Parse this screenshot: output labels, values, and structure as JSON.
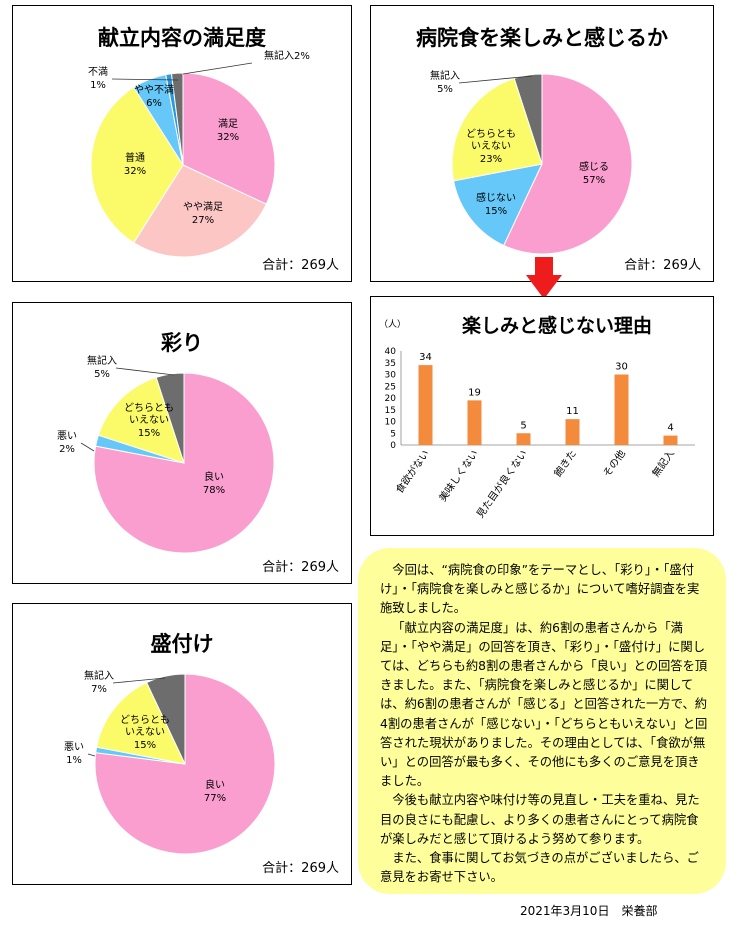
{
  "colors": {
    "pink": "#fa9ed0",
    "lightpink": "#fbc6c4",
    "yellow": "#fbfb6a",
    "blue": "#66c8f8",
    "darkblue": "#2a9ae0",
    "gray": "#6d6d6d",
    "orange": "#f48a3c",
    "red": "#ee1c1c"
  },
  "chart_data": [
    {
      "type": "pie",
      "title": "献立内容の満足度",
      "total_label": "合計：269人",
      "slices": [
        {
          "label": "満足",
          "pct_label": "32%",
          "value": 32,
          "color": "pink"
        },
        {
          "label": "やや満足",
          "pct_label": "27%",
          "value": 27,
          "color": "lightpink"
        },
        {
          "label": "普通",
          "pct_label": "32%",
          "value": 32,
          "color": "yellow"
        },
        {
          "label": "やや不満",
          "pct_label": "6%",
          "value": 6,
          "color": "blue"
        },
        {
          "label": "不満",
          "pct_label": "1%",
          "value": 1,
          "color": "darkblue"
        },
        {
          "label": "無記入",
          "pct_label": "2%",
          "value": 2,
          "color": "gray"
        }
      ]
    },
    {
      "type": "pie",
      "title": "病院食を楽しみと感じるか",
      "total_label": "合計：269人",
      "slices": [
        {
          "label": "感じる",
          "pct_label": "57%",
          "value": 57,
          "color": "pink"
        },
        {
          "label": "感じない",
          "pct_label": "15%",
          "value": 15,
          "color": "blue"
        },
        {
          "label": "どちらとも\nいえない",
          "pct_label": "23%",
          "value": 23,
          "color": "yellow"
        },
        {
          "label": "無記入",
          "pct_label": "5%",
          "value": 5,
          "color": "gray"
        }
      ]
    },
    {
      "type": "pie",
      "title": "彩り",
      "total_label": "合計：269人",
      "slices": [
        {
          "label": "良い",
          "pct_label": "78%",
          "value": 78,
          "color": "pink"
        },
        {
          "label": "悪い",
          "pct_label": "2%",
          "value": 2,
          "color": "blue"
        },
        {
          "label": "どちらとも\nいえない",
          "pct_label": "15%",
          "value": 15,
          "color": "yellow"
        },
        {
          "label": "無記入",
          "pct_label": "5%",
          "value": 5,
          "color": "gray"
        }
      ]
    },
    {
      "type": "pie",
      "title": "盛付け",
      "total_label": "合計：269人",
      "slices": [
        {
          "label": "良い",
          "pct_label": "77%",
          "value": 77,
          "color": "pink"
        },
        {
          "label": "悪い",
          "pct_label": "1%",
          "value": 1,
          "color": "blue"
        },
        {
          "label": "どちらとも\nいえない",
          "pct_label": "15%",
          "value": 15,
          "color": "yellow"
        },
        {
          "label": "無記入",
          "pct_label": "7%",
          "value": 7,
          "color": "gray"
        }
      ]
    },
    {
      "type": "bar",
      "title": "楽しみと感じない理由",
      "ylabel": "（人）",
      "ylim": [
        0,
        40
      ],
      "yticks": [
        0,
        5,
        10,
        15,
        20,
        25,
        30,
        35,
        40
      ],
      "categories": [
        "食欲がない",
        "美味しくない",
        "見た目が良くない",
        "飽きた",
        "その他",
        "無記入"
      ],
      "values": [
        34,
        19,
        5,
        11,
        30,
        4
      ]
    }
  ],
  "note": {
    "paragraphs": [
      "今回は、“病院食の印象”をテーマとし、「彩り」・「盛付け」・「病院食を楽しみと感じるか」について嗜好調査を実施致しました。",
      "「献立内容の満足度」は、約6割の患者さんから「満足」・「やや満足」の回答を頂き、「彩り」・「盛付け」に関しては、どちらも約8割の患者さんから「良い」との回答を頂きました。また、「病院食を楽しみと感じるか」に関しては、約6割の患者さんが「感じる」と回答された一方で、約4割の患者さんが「感じない」・「どちらともいえない」と回答された現状がありました。その理由としては、「食欲が無い」との回答が最も多く、その他にも多くのご意見を頂きました。",
      "今後も献立内容や味付け等の見直し・工夫を重ね、見た目の良さにも配慮し、より多くの患者さんにとって病院食が楽しみだと感じて頂けるよう努めて参ります。",
      "また、食事に関してお気づきの点がございましたら、ご意見をお寄せ下さい。"
    ]
  },
  "footer": "2021年3月10日　栄養部"
}
